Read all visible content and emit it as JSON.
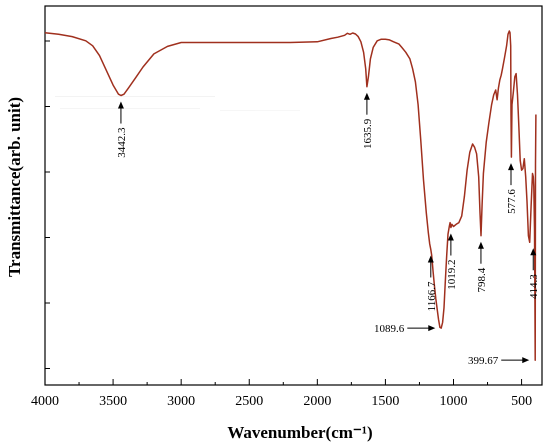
{
  "chart_data": {
    "type": "line",
    "title": "",
    "xlabel": "Wavenumber(cm⁻¹)",
    "ylabel": "Transmittance(arb. unit)",
    "xlim": [
      4000,
      350
    ],
    "x_reversed": true,
    "y_tick_labels_shown": false,
    "grid": false,
    "line_color": "#a0301e",
    "x_ticks": [
      4000,
      3500,
      3000,
      2500,
      2000,
      1500,
      1000,
      500
    ],
    "x_tick_labels": [
      "4000",
      "3500",
      "3000",
      "2500",
      "2000",
      "1500",
      "1000",
      "500"
    ],
    "series": [
      {
        "name": "",
        "x": [
          4000,
          3900,
          3800,
          3700,
          3650,
          3600,
          3550,
          3500,
          3460,
          3442,
          3420,
          3380,
          3330,
          3280,
          3200,
          3100,
          3000,
          2800,
          2600,
          2400,
          2200,
          2000,
          1900,
          1850,
          1800,
          1780,
          1760,
          1740,
          1720,
          1700,
          1680,
          1660,
          1645,
          1636,
          1625,
          1610,
          1590,
          1560,
          1530,
          1500,
          1470,
          1440,
          1400,
          1380,
          1350,
          1320,
          1300,
          1280,
          1260,
          1240,
          1220,
          1200,
          1185,
          1175,
          1167,
          1160,
          1150,
          1140,
          1130,
          1120,
          1110,
          1100,
          1090,
          1080,
          1070,
          1060,
          1050,
          1040,
          1030,
          1025,
          1019,
          1012,
          1000,
          980,
          960,
          940,
          920,
          900,
          880,
          860,
          845,
          830,
          815,
          805,
          798,
          790,
          780,
          760,
          740,
          720,
          705,
          690,
          680,
          670,
          660,
          650,
          640,
          625,
          610,
          600,
          590,
          585,
          580,
          578,
          575,
          570,
          560,
          550,
          540,
          530,
          520,
          510,
          500,
          490,
          480,
          470,
          460,
          450,
          440,
          430,
          425,
          420,
          414,
          410,
          405,
          402,
          400,
          398,
          395
        ],
        "values": [
          100,
          99.5,
          98.8,
          97.5,
          96,
          93,
          88.5,
          84,
          81.2,
          80.8,
          81.2,
          83.5,
          86.5,
          89.5,
          93.5,
          95.8,
          97,
          97,
          97,
          97,
          97,
          97.2,
          98.2,
          98.6,
          99.2,
          99.8,
          99.5,
          99.9,
          99.6,
          98.8,
          97.2,
          94,
          89,
          83.5,
          86.5,
          92,
          95.5,
          97.5,
          98,
          98,
          97.8,
          97.2,
          96.5,
          95.5,
          94,
          92,
          89,
          85,
          78,
          67,
          55,
          45,
          39,
          35.5,
          33.8,
          32,
          27,
          22.8,
          18.8,
          15.5,
          12.5,
          10,
          9.8,
          11.5,
          16,
          24,
          32,
          38.5,
          41,
          42,
          40.5,
          41.5,
          40.8,
          41.5,
          42,
          44,
          50,
          58,
          63.5,
          66,
          65,
          63,
          56,
          45,
          38,
          47.5,
          57,
          66.5,
          72.5,
          78,
          81,
          82.5,
          79.5,
          83,
          85.5,
          87,
          89,
          92.5,
          96,
          99.5,
          100.5,
          100,
          96,
          75,
          62,
          78,
          82,
          86.5,
          87.5,
          81,
          71,
          61,
          58,
          58.5,
          61.5,
          56,
          48.5,
          38,
          36,
          47,
          52,
          57,
          56,
          53,
          40,
          20,
          0,
          60,
          75
        ]
      }
    ],
    "annotations": [
      {
        "label": "3442.3",
        "x": 3442.3,
        "y": 80.8,
        "arrow": "up"
      },
      {
        "label": "1635.9",
        "x": 1635.9,
        "y": 83.5,
        "arrow": "up"
      },
      {
        "label": "1166.7",
        "x": 1166.7,
        "y": 33.8,
        "arrow": "up"
      },
      {
        "label": "1019.2",
        "x": 1019.2,
        "y": 40.5,
        "arrow": "up"
      },
      {
        "label": "798.4",
        "x": 798.4,
        "y": 38,
        "arrow": "up"
      },
      {
        "label": "577.6",
        "x": 577.6,
        "y": 62,
        "arrow": "up"
      },
      {
        "label": "414.3",
        "x": 414.3,
        "y": 36,
        "arrow": "up"
      },
      {
        "label": "1089.6",
        "x": 1089.6,
        "y": 9.8,
        "arrow": "right"
      },
      {
        "label": "399.67",
        "x": 399.67,
        "y": 0,
        "arrow": "right"
      }
    ]
  }
}
